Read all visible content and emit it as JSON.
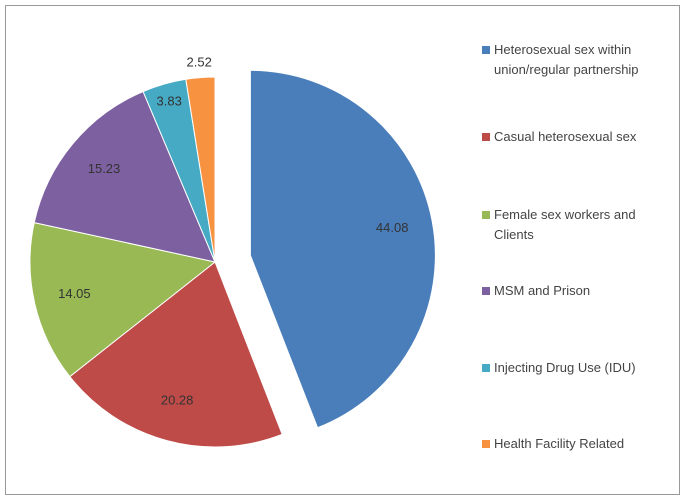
{
  "chart_data": {
    "type": "pie",
    "categories": [
      "Heterosexual sex within union/regular partnership",
      "Casual heterosexual sex",
      "Female sex workers and Clients",
      "MSM and Prison",
      "Injecting Drug Use (IDU)",
      "Health Facility Related"
    ],
    "values": [
      44.08,
      20.28,
      14.05,
      15.23,
      3.83,
      2.52
    ],
    "colors": [
      "#4a7ebb",
      "#be4b48",
      "#98b954",
      "#7d60a0",
      "#46aac5",
      "#f69240"
    ],
    "exploded": [
      0
    ],
    "legend": "right"
  }
}
